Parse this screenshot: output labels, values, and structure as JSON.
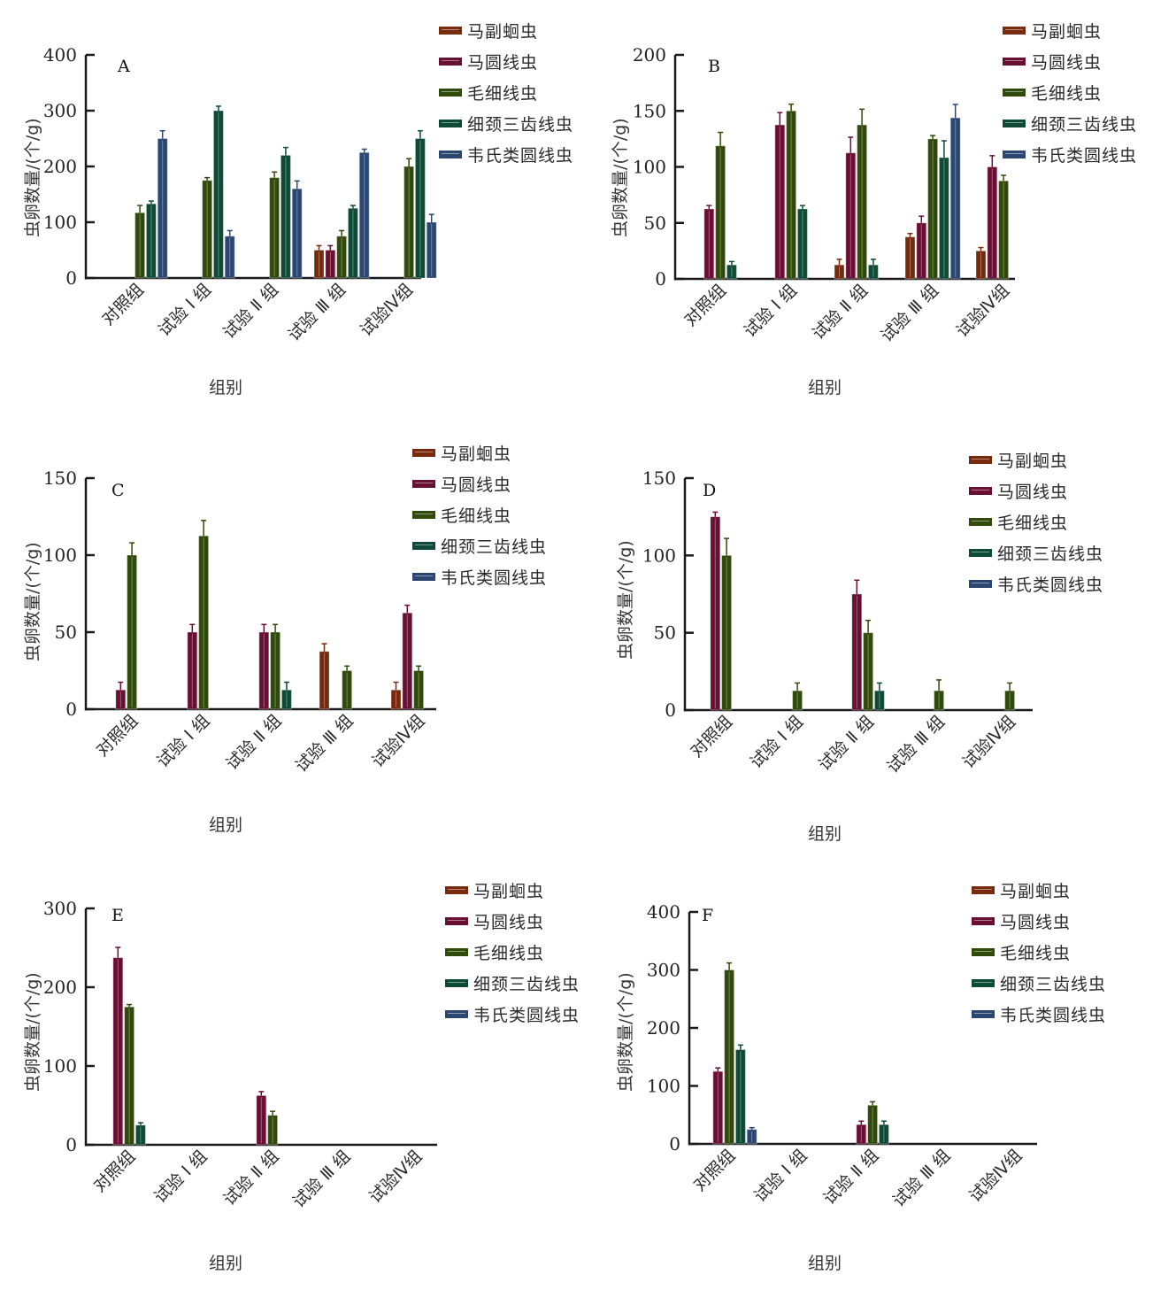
{
  "figure": {
    "series_names": [
      "马副蛔虫",
      "马圆线虫",
      "毛细线虫",
      "细颈三齿线虫",
      "韦氏类圆线虫"
    ],
    "series_colors": [
      "#7a2a0c",
      "#6a0f34",
      "#2f4a0b",
      "#0d4b36",
      "#2c4672"
    ],
    "categories": [
      "对照组",
      "试验 Ⅰ 组",
      "试验 Ⅱ 组",
      "试验 Ⅲ 组",
      "试验Ⅳ组"
    ],
    "xlabel": "组别",
    "ylabel": "虫卵数量/(个/g)"
  },
  "chart_data": [
    {
      "type": "bar",
      "title": "A",
      "xlabel": "组别",
      "ylabel": "虫卵数量/(个/g)",
      "ylim": [
        0,
        400
      ],
      "yticks": [
        0,
        100,
        200,
        300,
        400
      ],
      "categories": [
        "对照组",
        "试验 Ⅰ 组",
        "试验 Ⅱ 组",
        "试验 Ⅲ 组",
        "试验Ⅳ组"
      ],
      "legend": "right",
      "series": [
        {
          "name": "马副蛔虫",
          "values": [
            0,
            0,
            0,
            50,
            0
          ],
          "errors": [
            0,
            0,
            0,
            8,
            0
          ]
        },
        {
          "name": "马圆线虫",
          "values": [
            0,
            0,
            0,
            50,
            0
          ],
          "errors": [
            0,
            0,
            0,
            8,
            0
          ]
        },
        {
          "name": "毛细线虫",
          "values": [
            117,
            175,
            180,
            75,
            200
          ],
          "errors": [
            13,
            5,
            10,
            10,
            14
          ]
        },
        {
          "name": "细颈三齿线虫",
          "values": [
            133,
            300,
            220,
            125,
            250
          ],
          "errors": [
            5,
            8,
            14,
            5,
            14
          ]
        },
        {
          "name": "韦氏类圆线虫",
          "values": [
            250,
            75,
            160,
            225,
            100
          ],
          "errors": [
            14,
            10,
            14,
            6,
            14
          ]
        }
      ]
    },
    {
      "type": "bar",
      "title": "B",
      "xlabel": "组别",
      "ylabel": "虫卵数量/(个/g)",
      "ylim": [
        0,
        200
      ],
      "yticks": [
        0,
        50,
        100,
        150,
        200
      ],
      "categories": [
        "对照组",
        "试验 Ⅰ 组",
        "试验 Ⅱ 组",
        "试验 Ⅲ 组",
        "试验Ⅳ组"
      ],
      "legend": "right",
      "series": [
        {
          "name": "马副蛔虫",
          "values": [
            0,
            0,
            12.5,
            37.5,
            25
          ],
          "errors": [
            0,
            0,
            5,
            3,
            3
          ]
        },
        {
          "name": "马圆线虫",
          "values": [
            62.5,
            137.5,
            112.5,
            50,
            100
          ],
          "errors": [
            3,
            11,
            14,
            6,
            10
          ]
        },
        {
          "name": "毛细线虫",
          "values": [
            118.8,
            150,
            137.5,
            125,
            87.5
          ],
          "errors": [
            12,
            6,
            14,
            3,
            5
          ]
        },
        {
          "name": "细颈三齿线虫",
          "values": [
            12.5,
            62.5,
            12.5,
            108.3,
            0
          ],
          "errors": [
            3,
            3,
            5,
            15,
            0
          ]
        },
        {
          "name": "韦氏类圆线虫",
          "values": [
            0,
            0,
            0,
            143.8,
            0
          ],
          "errors": [
            0,
            0,
            0,
            12,
            0
          ]
        }
      ]
    },
    {
      "type": "bar",
      "title": "C",
      "xlabel": "组别",
      "ylabel": "虫卵数量/(个/g)",
      "ylim": [
        0,
        150
      ],
      "yticks": [
        0,
        50,
        100,
        150
      ],
      "categories": [
        "对照组",
        "试验 Ⅰ 组",
        "试验 Ⅱ 组",
        "试验 Ⅲ 组",
        "试验Ⅳ组"
      ],
      "legend": "right",
      "series": [
        {
          "name": "马副蛔虫",
          "values": [
            0,
            0,
            0,
            37.5,
            12.5
          ],
          "errors": [
            0,
            0,
            0,
            5,
            5
          ]
        },
        {
          "name": "马圆线虫",
          "values": [
            12.5,
            50,
            50,
            0,
            62.5
          ],
          "errors": [
            5,
            5,
            5,
            0,
            5
          ]
        },
        {
          "name": "毛细线虫",
          "values": [
            100,
            112.5,
            50,
            25,
            25
          ],
          "errors": [
            8,
            10,
            5,
            3,
            3
          ]
        },
        {
          "name": "细颈三齿线虫",
          "values": [
            0,
            0,
            12.5,
            0,
            0
          ],
          "errors": [
            0,
            0,
            5,
            0,
            0
          ]
        },
        {
          "name": "韦氏类圆线虫",
          "values": [
            0,
            0,
            0,
            0,
            0
          ],
          "errors": [
            0,
            0,
            0,
            0,
            0
          ]
        }
      ]
    },
    {
      "type": "bar",
      "title": "D",
      "xlabel": "组别",
      "ylabel": "虫卵数量/(个/g)",
      "ylim": [
        0,
        150
      ],
      "yticks": [
        0,
        50,
        100,
        150
      ],
      "categories": [
        "对照组",
        "试验 Ⅰ 组",
        "试验 Ⅱ 组",
        "试验 Ⅲ 组",
        "试验Ⅳ组"
      ],
      "legend": "right",
      "series": [
        {
          "name": "马副蛔虫",
          "values": [
            0,
            0,
            0,
            0,
            0
          ],
          "errors": [
            0,
            0,
            0,
            0,
            0
          ]
        },
        {
          "name": "马圆线虫",
          "values": [
            125,
            0,
            75,
            0,
            0
          ],
          "errors": [
            3,
            0,
            9,
            0,
            0
          ]
        },
        {
          "name": "毛细线虫",
          "values": [
            100,
            12.5,
            50,
            12.5,
            12.5
          ],
          "errors": [
            11,
            5,
            8,
            7,
            5
          ]
        },
        {
          "name": "细颈三齿线虫",
          "values": [
            0,
            0,
            12.5,
            0,
            0
          ],
          "errors": [
            0,
            0,
            5,
            0,
            0
          ]
        },
        {
          "name": "韦氏类圆线虫",
          "values": [
            0,
            0,
            0,
            0,
            0
          ],
          "errors": [
            0,
            0,
            0,
            0,
            0
          ]
        }
      ]
    },
    {
      "type": "bar",
      "title": "E",
      "xlabel": "组别",
      "ylabel": "虫卵数量/(个/g)",
      "ylim": [
        0,
        300
      ],
      "yticks": [
        0,
        100,
        200,
        300
      ],
      "categories": [
        "对照组",
        "试验 Ⅰ 组",
        "试验 Ⅱ 组",
        "试验 Ⅲ 组",
        "试验Ⅳ组"
      ],
      "legend": "right",
      "series": [
        {
          "name": "马副蛔虫",
          "values": [
            0,
            0,
            0,
            0,
            0
          ],
          "errors": [
            0,
            0,
            0,
            0,
            0
          ]
        },
        {
          "name": "马圆线虫",
          "values": [
            237.5,
            0,
            62.5,
            0,
            0
          ],
          "errors": [
            13,
            0,
            5,
            0,
            0
          ]
        },
        {
          "name": "毛细线虫",
          "values": [
            175,
            0,
            37.5,
            0,
            0
          ],
          "errors": [
            3,
            0,
            5,
            0,
            0
          ]
        },
        {
          "name": "细颈三齿线虫",
          "values": [
            25,
            0,
            0,
            0,
            0
          ],
          "errors": [
            3,
            0,
            0,
            0,
            0
          ]
        },
        {
          "name": "韦氏类圆线虫",
          "values": [
            0,
            0,
            0,
            0,
            0
          ],
          "errors": [
            0,
            0,
            0,
            0,
            0
          ]
        }
      ]
    },
    {
      "type": "bar",
      "title": "F",
      "xlabel": "组别",
      "ylabel": "虫卵数量/(个/g)",
      "ylim": [
        0,
        400
      ],
      "yticks": [
        0,
        100,
        200,
        300,
        400
      ],
      "categories": [
        "对照组",
        "试验 Ⅰ 组",
        "试验 Ⅱ 组",
        "试验 Ⅲ 组",
        "试验Ⅳ组"
      ],
      "legend": "right",
      "series": [
        {
          "name": "马副蛔虫",
          "values": [
            0,
            0,
            0,
            0,
            0
          ],
          "errors": [
            0,
            0,
            0,
            0,
            0
          ]
        },
        {
          "name": "马圆线虫",
          "values": [
            125,
            0,
            33.3,
            0,
            0
          ],
          "errors": [
            6,
            0,
            6,
            0,
            0
          ]
        },
        {
          "name": "毛细线虫",
          "values": [
            300,
            0,
            66.7,
            0,
            0
          ],
          "errors": [
            12,
            0,
            6,
            0,
            0
          ]
        },
        {
          "name": "细颈三齿线虫",
          "values": [
            162.5,
            0,
            33.3,
            0,
            0
          ],
          "errors": [
            8,
            0,
            6,
            0,
            0
          ]
        },
        {
          "name": "韦氏类圆线虫",
          "values": [
            25,
            0,
            0,
            0,
            0
          ],
          "errors": [
            3,
            0,
            0,
            0,
            0
          ]
        }
      ]
    }
  ]
}
